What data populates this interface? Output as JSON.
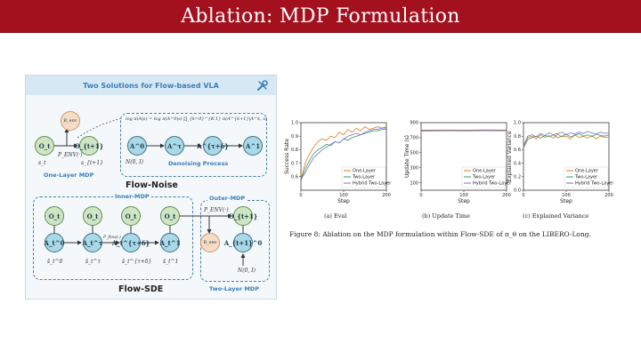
{
  "slide": {
    "title": "Ablation: MDP Formulation"
  },
  "diagram": {
    "header": "Two Solutions for Flow-based VLA",
    "env_node": "R_env",
    "formula": "log π(A|s) = log π(A^0|s) ∏_{k=0}^{K-1} π(A^{k+1}|A^k, s)",
    "one_layer_label": "One-Layer MDP",
    "flow_noise_title": "Flow-Noise",
    "denoising_label": "Denoising Process",
    "noise_label": "N(0, I)",
    "inner_mdp_label": "Inner-MDP",
    "outer_mdp_label": "Outer-MDP",
    "two_layer_label": "Two-Layer MDP",
    "flow_sde_title": "Flow-SDE",
    "env_transition": "P_ENV(·)",
    "flow_transition": "P_flow(·)",
    "state_t": "s_t",
    "state_t1": "s_{t+1}",
    "nodes_top": [
      "O_t",
      "O_{t+1}",
      "A^0",
      "A^τ",
      "A^{τ+δ}",
      "A^1"
    ],
    "nodes_bottom_obs": [
      "O_t",
      "O_t",
      "O_t",
      "O_t",
      "O_{t+1}"
    ],
    "nodes_bottom_act": [
      "A_t^0",
      "A_t^τ",
      "A_t^{τ+δ}",
      "A_t^1",
      "A_{t+1}^0"
    ],
    "bottom_states": [
      "s̄_t^0",
      "s̄_t^τ",
      "s̄_t^{τ+δ}",
      "s̄_t^1"
    ]
  },
  "figure_caption": "Figure 8: Ablation on the MDP formulation within Flow-SDE of π_θ on the LIBERO-Long.",
  "colors": {
    "one_layer": "#e07b1a",
    "two_layer": "#2e9e5b",
    "hybrid": "#7a6fd0",
    "title_bar": "#a3101e"
  },
  "chart_data": [
    {
      "type": "line",
      "caption": "(a) Eval",
      "xlabel": "Step",
      "ylabel": "Success Rate",
      "xlim": [
        0,
        200
      ],
      "ylim": [
        0.5,
        1.0
      ],
      "xticks": [
        0,
        100,
        200
      ],
      "yticks": [
        0.6,
        0.7,
        0.8,
        0.9,
        1.0
      ],
      "legend_position": "bottom-right",
      "x": [
        0,
        10,
        20,
        30,
        40,
        50,
        60,
        70,
        80,
        90,
        100,
        110,
        120,
        130,
        140,
        150,
        160,
        170,
        180,
        190,
        200
      ],
      "series": [
        {
          "name": "One-Layer",
          "values": [
            0.58,
            0.7,
            0.77,
            0.82,
            0.86,
            0.88,
            0.87,
            0.9,
            0.89,
            0.93,
            0.91,
            0.95,
            0.93,
            0.96,
            0.94,
            0.97,
            0.95,
            0.96,
            0.97,
            0.96,
            0.97
          ]
        },
        {
          "name": "Two-Layer",
          "values": [
            0.57,
            0.66,
            0.72,
            0.77,
            0.8,
            0.82,
            0.84,
            0.83,
            0.86,
            0.85,
            0.88,
            0.87,
            0.89,
            0.9,
            0.91,
            0.92,
            0.93,
            0.94,
            0.94,
            0.95,
            0.95
          ]
        },
        {
          "name": "Hybrid Two-Layer",
          "values": [
            0.58,
            0.63,
            0.69,
            0.74,
            0.77,
            0.8,
            0.82,
            0.84,
            0.86,
            0.85,
            0.88,
            0.9,
            0.91,
            0.92,
            0.91,
            0.93,
            0.94,
            0.95,
            0.95,
            0.96,
            0.96
          ]
        }
      ]
    },
    {
      "type": "line",
      "caption": "(b) Update Time",
      "xlabel": "Step",
      "ylabel": "Update Time (s)",
      "xlim": [
        0,
        200
      ],
      "ylim": [
        0,
        900
      ],
      "xticks": [
        0,
        100,
        200
      ],
      "yticks": [
        100,
        300,
        500,
        700,
        900
      ],
      "legend_position": "bottom-right",
      "x": [
        0,
        50,
        100,
        150,
        200
      ],
      "series": [
        {
          "name": "One-Layer",
          "values": [
            800,
            802,
            801,
            803,
            802
          ]
        },
        {
          "name": "Two-Layer",
          "values": [
            790,
            792,
            791,
            793,
            792
          ]
        },
        {
          "name": "Hybrid Two-Layer",
          "values": [
            795,
            796,
            795,
            797,
            796
          ]
        }
      ]
    },
    {
      "type": "line",
      "caption": "(c) Explained Variance",
      "xlabel": "Step",
      "ylabel": "Explained Variance",
      "xlim": [
        0,
        200
      ],
      "ylim": [
        0.0,
        1.0
      ],
      "xticks": [
        0,
        100,
        200
      ],
      "yticks": [
        0.0,
        0.2,
        0.4,
        0.6,
        0.8,
        1.0
      ],
      "legend_position": "bottom-right",
      "x": [
        0,
        10,
        20,
        30,
        40,
        50,
        60,
        70,
        80,
        90,
        100,
        110,
        120,
        130,
        140,
        150,
        160,
        170,
        180,
        190,
        200
      ],
      "series": [
        {
          "name": "One-Layer",
          "values": [
            0.65,
            0.78,
            0.8,
            0.76,
            0.82,
            0.78,
            0.81,
            0.77,
            0.83,
            0.79,
            0.8,
            0.76,
            0.82,
            0.78,
            0.8,
            0.77,
            0.81,
            0.76,
            0.8,
            0.78,
            0.79
          ]
        },
        {
          "name": "Two-Layer",
          "values": [
            0.62,
            0.75,
            0.78,
            0.8,
            0.77,
            0.81,
            0.79,
            0.82,
            0.78,
            0.8,
            0.83,
            0.79,
            0.81,
            0.84,
            0.8,
            0.82,
            0.79,
            0.83,
            0.81,
            0.8,
            0.82
          ]
        },
        {
          "name": "Hybrid Two-Layer",
          "values": [
            0.66,
            0.8,
            0.82,
            0.79,
            0.84,
            0.81,
            0.85,
            0.82,
            0.84,
            0.86,
            0.82,
            0.85,
            0.83,
            0.86,
            0.84,
            0.87,
            0.85,
            0.83,
            0.86,
            0.84,
            0.85
          ]
        }
      ]
    }
  ]
}
